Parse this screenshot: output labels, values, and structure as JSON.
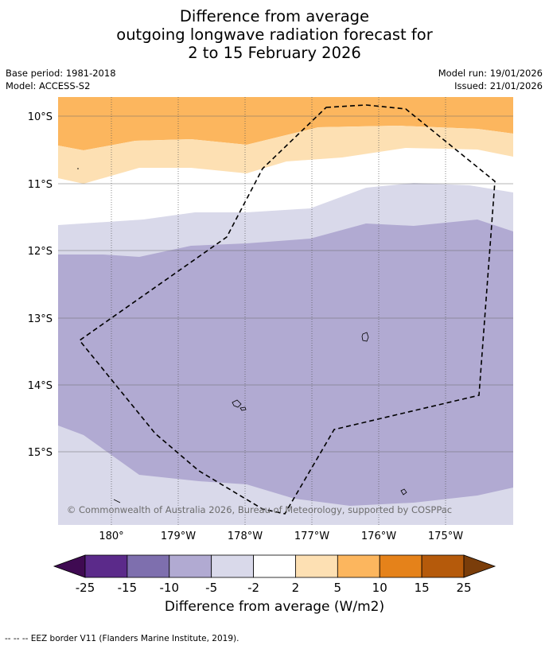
{
  "title": {
    "line1": "Difference from average",
    "line2": "outgoing longwave radiation forecast for",
    "line3": "2 to 15 February 2026"
  },
  "meta": {
    "base_period": "Base period: 1981-2018",
    "model": "Model: ACCESS-S2",
    "model_run": "Model run: 19/01/2026",
    "issued": "Issued: 21/01/2026"
  },
  "map": {
    "copyright": "© Commonwealth of Australia 2026, Bureau of Meteorology, supported by COSPPac",
    "lat_labels": [
      "10°S",
      "11°S",
      "12°S",
      "13°S",
      "14°S",
      "15°S"
    ],
    "lon_labels": [
      "180°",
      "179°W",
      "178°W",
      "177°W",
      "176°W",
      "175°W"
    ]
  },
  "colorbar": {
    "ticks": [
      "-25",
      "-15",
      "-10",
      "-5",
      "-2",
      "2",
      "5",
      "10",
      "15",
      "25"
    ],
    "colors": [
      "#3f0a52",
      "#5b2a8a",
      "#7e6fae",
      "#b1aad2",
      "#d9d9ea",
      "#ffffff",
      "#fde0b3",
      "#fcb65e",
      "#e5821a",
      "#b55a0b",
      "#7a3d0a"
    ],
    "title": "Difference from average (W/m2)"
  },
  "footer": {
    "legend": "--  --  -- EEZ border V11 (Flanders Marine Institute, 2019)."
  }
}
